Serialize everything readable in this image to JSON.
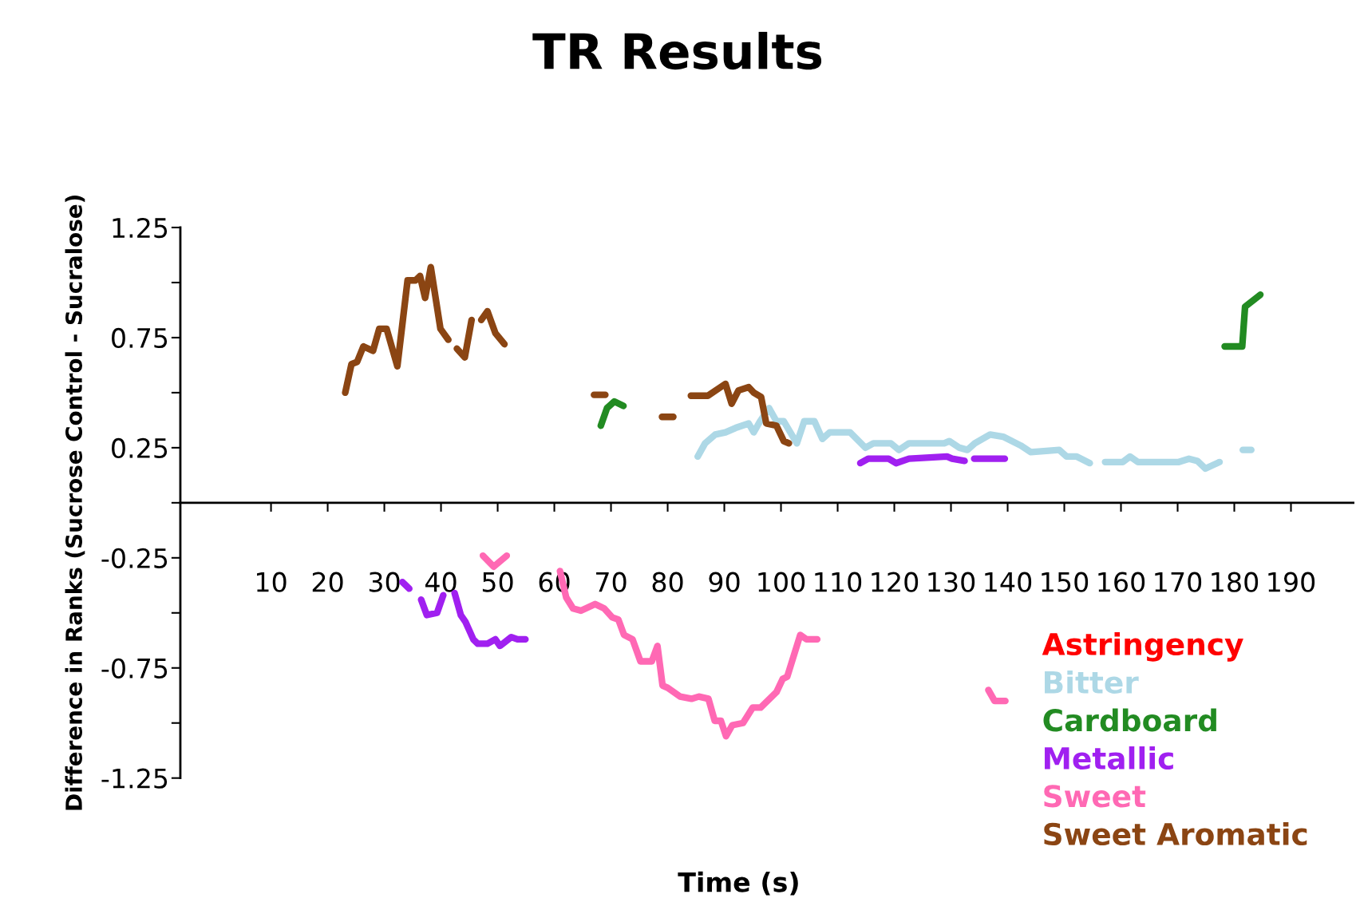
{
  "chart_data": {
    "type": "line",
    "title": "TR Results",
    "xlabel": "Time (s)",
    "ylabel": "Difference in Ranks (Sucrose Control - Sucralose)",
    "xlim": [
      -6,
      201
    ],
    "xticks": [
      10,
      20,
      30,
      40,
      50,
      60,
      70,
      80,
      90,
      100,
      110,
      120,
      130,
      140,
      150,
      160,
      170,
      180,
      190
    ],
    "ylim": [
      -1.25,
      1.25
    ],
    "yticks": [
      1.25,
      {
        "value": 1.0,
        "label": null
      },
      0.75,
      {
        "value": 0.5,
        "label": null
      },
      0.25,
      {
        "value": 0,
        "label": null
      },
      -0.25,
      {
        "value": -0.5,
        "label": null
      },
      -0.75,
      {
        "value": -1.0,
        "label": null
      },
      -1.25
    ],
    "legend": "bottom right",
    "line_style": "solid",
    "series": [
      {
        "name": "Astringency",
        "color": "#ff0000"
      },
      {
        "name": "Bitter",
        "color": "#add8e6",
        "x": [
          85.3,
          86.6,
          88.4,
          90.2,
          92.0,
          94.3,
          95.2,
          96.3,
          97.9,
          99.2,
          100.5,
          102.8,
          104.1,
          105.9,
          107.3,
          108.6,
          112.2,
          114.9,
          116.3,
          119.4,
          120.8,
          122.6,
          128.8,
          129.7,
          131.5,
          132.9,
          134.2,
          136.9,
          139.2,
          142.3,
          144.1,
          149.1,
          150.4,
          152.2,
          154.5,
          155.8,
          157.2,
          160.3,
          161.6,
          163.0,
          170.2,
          172.0,
          173.5,
          174.9,
          177.4,
          179.4,
          181.5,
          183.0
        ],
        "values": [
          0.21,
          0.27,
          0.31,
          0.32,
          0.34,
          0.36,
          0.32,
          0.37,
          0.43,
          0.37,
          0.37,
          0.27,
          0.37,
          0.37,
          0.29,
          0.32,
          0.32,
          0.25,
          0.27,
          0.27,
          0.24,
          0.27,
          0.27,
          0.28,
          0.25,
          0.24,
          0.27,
          0.31,
          0.3,
          0.26,
          0.23,
          0.24,
          0.21,
          0.21,
          0.18,
          null,
          0.185,
          0.185,
          0.21,
          0.185,
          0.185,
          0.2,
          0.19,
          0.155,
          0.185,
          null,
          0.24,
          0.24
        ]
      },
      {
        "name": "Cardboard",
        "color": "#228b22",
        "x": [
          68.2,
          69.3,
          70.6,
          72.2,
          75.0,
          178.3,
          181.4,
          181.9,
          184.6
        ],
        "values": [
          0.35,
          0.43,
          0.46,
          0.44,
          null,
          0.71,
          0.71,
          0.89,
          0.945
        ]
      },
      {
        "name": "Metallic",
        "color": "#a020f0",
        "x": [
          33.2,
          34.4,
          35.5,
          36.5,
          37.5,
          39.3,
          40.4,
          41.4,
          42.4,
          43.5,
          44.3,
          45.7,
          46.5,
          48.2,
          49.6,
          50.4,
          52.4,
          53.5,
          54.9,
          84.0,
          114.0,
          115.4,
          119.0,
          120.3,
          122.6,
          129.3,
          130.2,
          132.4,
          133.2,
          134.1,
          139.5
        ],
        "values": [
          -0.36,
          -0.39,
          null,
          -0.44,
          -0.51,
          -0.5,
          -0.42,
          null,
          -0.41,
          -0.51,
          -0.54,
          -0.62,
          -0.64,
          -0.64,
          -0.62,
          -0.65,
          -0.61,
          -0.62,
          -0.62,
          null,
          0.18,
          0.2,
          0.2,
          0.18,
          0.2,
          0.21,
          0.2,
          0.19,
          null,
          0.2,
          0.2
        ]
      },
      {
        "name": "Sweet",
        "color": "#ff69b4",
        "x": [
          47.4,
          49.3,
          51.6,
          56.0,
          61.0,
          62.1,
          63.3,
          64.7,
          67.2,
          68.8,
          70.2,
          71.3,
          72.3,
          73.8,
          75.2,
          77.2,
          78.2,
          79.1,
          80.0,
          82.2,
          84.2,
          85.5,
          87.2,
          88.3,
          89.4,
          90.3,
          91.4,
          93.3,
          95.0,
          96.4,
          99.2,
          100.3,
          101.1,
          103.4,
          104.5,
          106.4,
          120.0,
          136.6,
          137.7,
          139.6
        ],
        "values": [
          -0.24,
          -0.29,
          -0.24,
          null,
          -0.31,
          -0.43,
          -0.48,
          -0.49,
          -0.46,
          -0.48,
          -0.52,
          -0.53,
          -0.6,
          -0.62,
          -0.72,
          -0.72,
          -0.65,
          -0.83,
          -0.84,
          -0.88,
          -0.89,
          -0.88,
          -0.89,
          -0.99,
          -0.99,
          -1.06,
          -1.01,
          -1.0,
          -0.93,
          -0.93,
          -0.86,
          -0.8,
          -0.79,
          -0.6,
          -0.62,
          -0.62,
          null,
          -0.85,
          -0.9,
          -0.9
        ]
      },
      {
        "name": "Sweet Aromatic",
        "color": "#8b4513",
        "x": [
          23.1,
          24.2,
          25.2,
          26.3,
          28.0,
          29.1,
          30.4,
          32.3,
          34.1,
          35.5,
          36.3,
          37.2,
          38.2,
          39.9,
          41.3,
          42.0,
          42.8,
          44.2,
          45.4,
          46.2,
          47.1,
          48.2,
          49.6,
          51.2,
          60.0,
          67.0,
          69.0,
          74.0,
          79.0,
          81.0,
          82.5,
          84.1,
          87.1,
          90.2,
          91.3,
          92.5,
          94.3,
          95.2,
          96.5,
          97.4,
          99.2,
          100.5,
          101.4
        ],
        "values": [
          0.5,
          0.63,
          0.64,
          0.71,
          0.69,
          0.79,
          0.79,
          0.62,
          1.01,
          1.01,
          1.03,
          0.93,
          1.07,
          0.79,
          0.74,
          null,
          0.7,
          0.66,
          0.83,
          null,
          0.83,
          0.87,
          0.77,
          0.72,
          null,
          0.49,
          0.49,
          null,
          0.39,
          0.39,
          null,
          0.486,
          0.486,
          0.54,
          0.45,
          0.51,
          0.525,
          0.5,
          0.48,
          0.36,
          0.35,
          0.28,
          0.27
        ]
      }
    ]
  }
}
